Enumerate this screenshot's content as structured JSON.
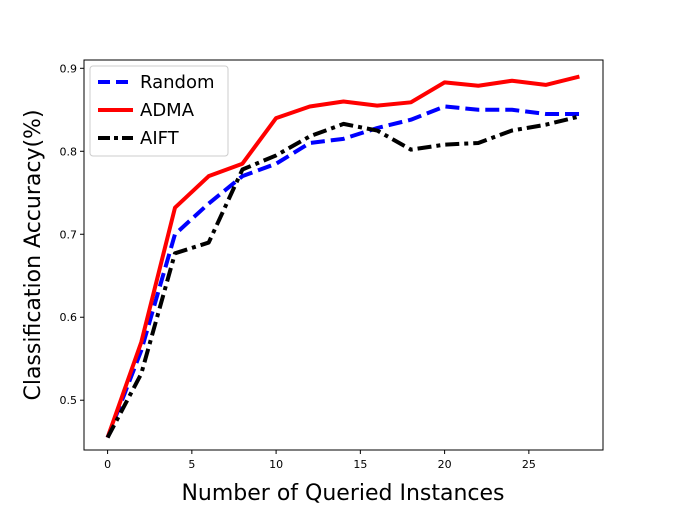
{
  "chart_data": {
    "type": "line",
    "title": "",
    "xlabel": "Number of Queried Instances",
    "ylabel": "Classification Accuracy(%)",
    "xlim": [
      -1.4,
      29.4
    ],
    "ylim": [
      0.44,
      0.91
    ],
    "xticks": [
      0,
      5,
      10,
      15,
      20,
      25
    ],
    "xtick_labels": [
      "0",
      "5",
      "10",
      "15",
      "20",
      "25"
    ],
    "yticks": [
      0.5,
      0.6,
      0.7,
      0.8,
      0.9
    ],
    "ytick_labels": [
      "0.5",
      "0.6",
      "0.7",
      "0.8",
      "0.9"
    ],
    "grid": false,
    "legend_position": "top-left",
    "series": [
      {
        "name": "Random",
        "color": "#0000ff",
        "style": "dashed",
        "x": [
          0,
          2,
          4,
          6,
          8,
          10,
          12,
          14,
          16,
          18,
          20,
          22,
          24,
          26,
          28
        ],
        "y": [
          0.455,
          0.56,
          0.7,
          0.737,
          0.77,
          0.785,
          0.81,
          0.815,
          0.828,
          0.838,
          0.854,
          0.85,
          0.85,
          0.845,
          0.845
        ]
      },
      {
        "name": "ADMA",
        "color": "#ff0000",
        "style": "solid",
        "x": [
          0,
          2,
          4,
          6,
          8,
          10,
          12,
          14,
          16,
          18,
          20,
          22,
          24,
          26,
          28
        ],
        "y": [
          0.455,
          0.57,
          0.732,
          0.77,
          0.785,
          0.84,
          0.854,
          0.86,
          0.855,
          0.859,
          0.883,
          0.879,
          0.885,
          0.88,
          0.89
        ]
      },
      {
        "name": "AIFT",
        "color": "#000000",
        "style": "dashdot",
        "x": [
          0,
          2,
          4,
          6,
          8,
          10,
          12,
          14,
          16,
          18,
          20,
          22,
          24,
          26,
          28
        ],
        "y": [
          0.455,
          0.532,
          0.677,
          0.69,
          0.778,
          0.795,
          0.818,
          0.833,
          0.825,
          0.802,
          0.808,
          0.81,
          0.825,
          0.832,
          0.842
        ]
      }
    ]
  }
}
